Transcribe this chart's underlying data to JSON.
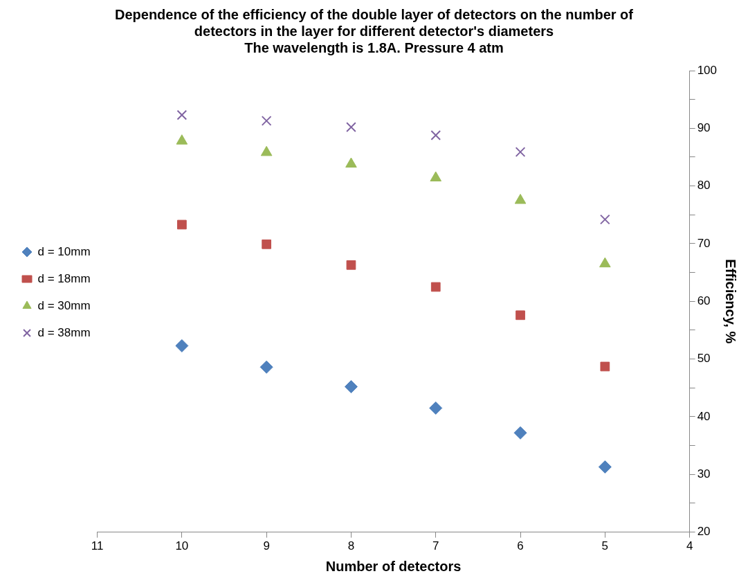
{
  "chart_data": {
    "type": "scatter",
    "title": "Dependence of the efficiency of the double layer of detectors on the number of detectors in the layer for different detector's diameters",
    "subtitle": "The wavelength is 1.8A. Pressure 4 atm",
    "xlabel": "Number of detectors",
    "ylabel": "Efficiency, %",
    "x": [
      10,
      9,
      8,
      7,
      6,
      5
    ],
    "series": [
      {
        "name": "d = 10mm",
        "color": "#4f81bd",
        "marker": "diamond",
        "values": [
          52.3,
          48.6,
          45.2,
          41.5,
          37.2,
          31.3
        ]
      },
      {
        "name": "d = 18mm",
        "color": "#c0504d",
        "marker": "square",
        "values": [
          73.3,
          69.9,
          66.3,
          62.5,
          57.6,
          48.7
        ]
      },
      {
        "name": "d = 30mm",
        "color": "#9bbb59",
        "marker": "triangle",
        "values": [
          87.8,
          85.8,
          83.8,
          81.4,
          77.5,
          66.5
        ]
      },
      {
        "name": "d = 38mm",
        "color": "#8064a2",
        "marker": "cross",
        "values": [
          92.3,
          91.3,
          90.2,
          88.8,
          85.9,
          74.2
        ]
      }
    ],
    "xlim": [
      11,
      4
    ],
    "xticks": [
      11,
      10,
      9,
      8,
      7,
      6,
      5,
      4
    ],
    "ylim": [
      20,
      100
    ],
    "yticks": [
      20,
      {
        "value": 25,
        "label": null
      },
      30,
      {
        "value": 35,
        "label": null
      },
      40,
      {
        "value": 45,
        "label": null
      },
      50,
      {
        "value": 55,
        "label": null
      },
      60,
      {
        "value": 65,
        "label": null
      },
      70,
      {
        "value": 75,
        "label": null
      },
      80,
      {
        "value": 85,
        "label": null
      },
      90,
      {
        "value": 95,
        "label": null
      },
      100
    ],
    "grid": false,
    "legend": "left"
  }
}
